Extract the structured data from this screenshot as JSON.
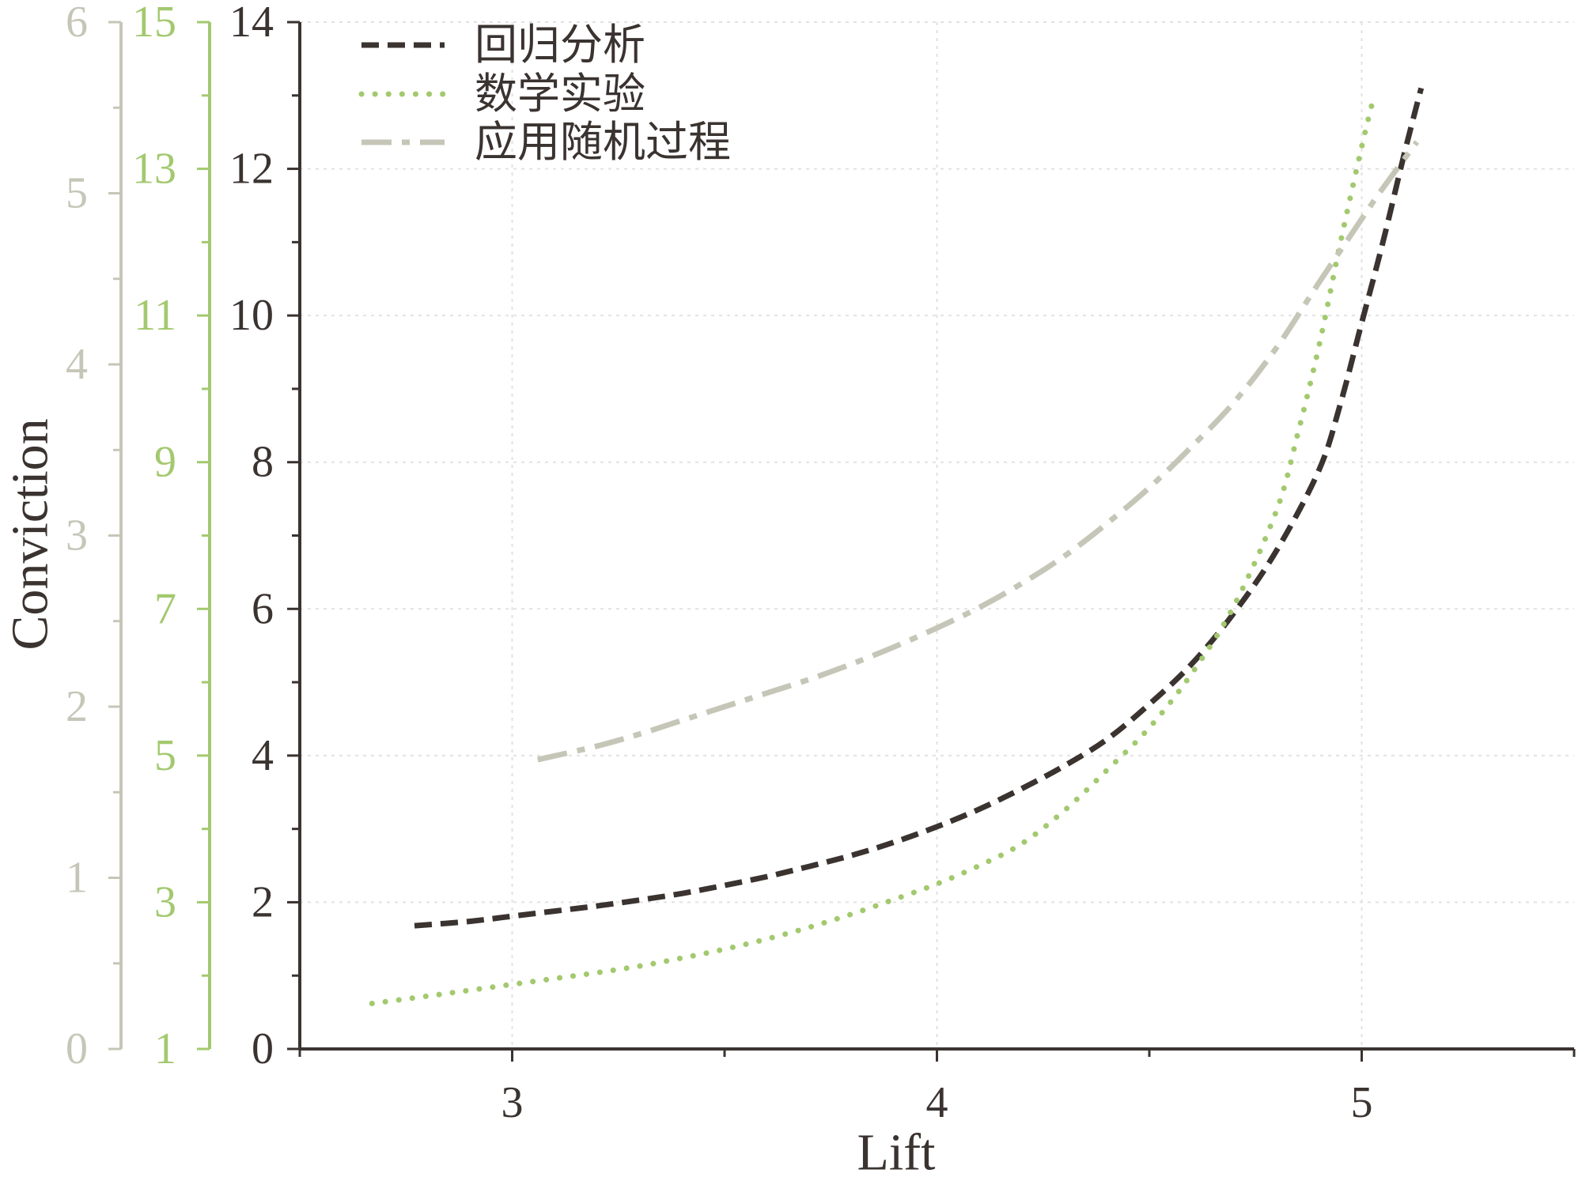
{
  "chart_data": {
    "type": "line",
    "xlabel": "Lift",
    "ylabel": "Conviction",
    "xlim": [
      2.5,
      5.5
    ],
    "xticks": [
      3,
      4,
      5
    ],
    "grid": true,
    "legend_position": "top-left",
    "y_axes": [
      {
        "ylim": [
          0,
          14
        ],
        "ticks": [
          0,
          2,
          4,
          6,
          8,
          10,
          12,
          14
        ],
        "color": "#3a3330"
      },
      {
        "ylim": [
          1,
          15
        ],
        "ticks": [
          1,
          3,
          5,
          7,
          9,
          11,
          13,
          15
        ],
        "color": "#a3c96f"
      },
      {
        "ylim": [
          0,
          6
        ],
        "ticks": [
          0,
          1,
          2,
          3,
          4,
          5,
          6
        ],
        "color": "#c6c6b8"
      }
    ],
    "series": [
      {
        "name": "回归分析",
        "y_axis": 0,
        "style": "dashed",
        "color": "#3a3330",
        "x": [
          2.77,
          2.9,
          3.0,
          3.1,
          3.2,
          3.3,
          3.4,
          3.5,
          3.6,
          3.7,
          3.8,
          3.9,
          4.0,
          4.1,
          4.2,
          4.3,
          4.4,
          4.5,
          4.6,
          4.7,
          4.8,
          4.9,
          4.95,
          5.0,
          5.05,
          5.1,
          5.14
        ],
        "y": [
          1.68,
          1.74,
          1.81,
          1.88,
          1.95,
          2.03,
          2.12,
          2.23,
          2.35,
          2.49,
          2.64,
          2.82,
          3.03,
          3.27,
          3.55,
          3.86,
          4.22,
          4.7,
          5.25,
          5.95,
          6.8,
          7.9,
          8.8,
          9.9,
          11.0,
          12.2,
          13.1
        ]
      },
      {
        "name": "数学实验",
        "y_axis": 1,
        "style": "dotted",
        "color": "#a3c96f",
        "x": [
          2.67,
          2.8,
          2.9,
          3.0,
          3.1,
          3.2,
          3.3,
          3.4,
          3.5,
          3.6,
          3.7,
          3.8,
          3.9,
          4.0,
          4.1,
          4.2,
          4.3,
          4.4,
          4.5,
          4.6,
          4.7,
          4.8,
          4.85,
          4.9,
          4.95,
          5.0,
          5.025
        ],
        "y": [
          1.62,
          1.72,
          1.8,
          1.88,
          1.96,
          2.04,
          2.13,
          2.24,
          2.36,
          2.5,
          2.66,
          2.84,
          3.04,
          3.25,
          3.5,
          3.8,
          4.25,
          4.8,
          5.38,
          6.12,
          7.05,
          8.35,
          9.4,
          10.6,
          12.0,
          13.3,
          13.9
        ]
      },
      {
        "name": "应用随机过程",
        "y_axis": 2,
        "style": "dash-dot",
        "color": "#c6c6b8",
        "x": [
          3.06,
          3.2,
          3.3,
          3.4,
          3.5,
          3.6,
          3.7,
          3.8,
          3.9,
          4.0,
          4.1,
          4.2,
          4.3,
          4.4,
          4.5,
          4.6,
          4.7,
          4.8,
          4.9,
          5.0,
          5.05,
          5.13
        ],
        "y": [
          1.69,
          1.77,
          1.84,
          1.92,
          2.0,
          2.08,
          2.16,
          2.25,
          2.35,
          2.46,
          2.58,
          2.72,
          2.88,
          3.07,
          3.28,
          3.52,
          3.78,
          4.1,
          4.48,
          4.85,
          5.03,
          5.3
        ]
      }
    ]
  }
}
